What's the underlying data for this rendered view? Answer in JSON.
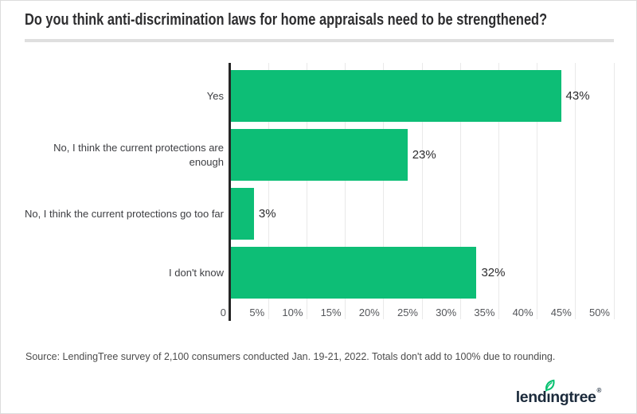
{
  "title": "Do you think anti-discrimination laws for home appraisals need to be strengthened?",
  "source_note": "Source: LendingTree survey of 2,100 consumers conducted Jan. 19-21, 2022. Totals don't add to 100% due to rounding.",
  "logo": {
    "part1": "lend",
    "dotless_i": "ı",
    "part2": "ngtree",
    "trademark": "®"
  },
  "colors": {
    "bar": "#0dbe76",
    "axis": "#262626",
    "gridline": "#e9e9e9",
    "divider": "#dfdfdf",
    "title_text": "#2e2e30",
    "category_text": "#3d3e42",
    "tick_text": "#54565a",
    "value_text": "#2c2c2e",
    "source_text": "#4c4c4c",
    "logo_text": "#1b2a3b",
    "leaf": "#00c06e"
  },
  "chart_data": {
    "type": "bar",
    "orientation": "horizontal",
    "title": "Do you think anti-discrimination laws for home appraisals need to be strengthened?",
    "categories": [
      "Yes",
      "No, I think the current protections are enough",
      "No, I think the current protections go too far",
      "I don't know"
    ],
    "values": [
      43,
      23,
      3,
      32
    ],
    "value_labels": [
      "43%",
      "23%",
      "3%",
      "32%"
    ],
    "xlabel": "",
    "ylabel": "",
    "xlim": [
      0,
      50
    ],
    "x_ticks": [
      "0",
      "5%",
      "10%",
      "15%",
      "20%",
      "25%",
      "30%",
      "35%",
      "40%",
      "45%",
      "50%"
    ],
    "grid": true,
    "legend": false
  }
}
